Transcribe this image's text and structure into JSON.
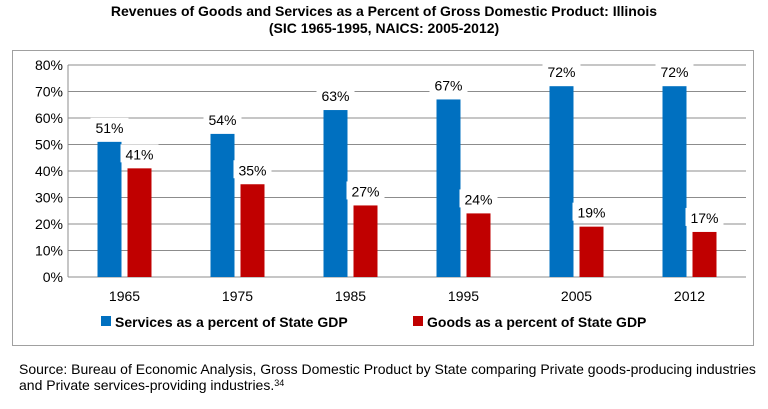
{
  "chart_data": {
    "type": "bar",
    "title_line1": "Revenues of Goods and Services as a Percent of Gross Domestic Product:  Illinois",
    "title_line2": "(SIC 1965-1995, NAICS: 2005-2012)",
    "categories": [
      "1965",
      "1975",
      "1985",
      "1995",
      "2005",
      "2012"
    ],
    "series": [
      {
        "name": "Services as a percent of State GDP",
        "color": "#0070c0",
        "values": [
          51,
          54,
          63,
          67,
          72,
          72
        ],
        "labels": [
          "51%",
          "54%",
          "63%",
          "67%",
          "72%",
          "72%"
        ]
      },
      {
        "name": "Goods as a percent of State GDP",
        "color": "#c00000",
        "values": [
          41,
          35,
          27,
          24,
          19,
          17
        ],
        "labels": [
          "41%",
          "35%",
          "27%",
          "24%",
          "19%",
          "17%"
        ]
      }
    ],
    "yticks": [
      0,
      10,
      20,
      30,
      40,
      50,
      60,
      70,
      80
    ],
    "ytick_labels": [
      "0%",
      "10%",
      "20%",
      "30%",
      "40%",
      "50%",
      "60%",
      "70%",
      "80%"
    ],
    "ylim": [
      0,
      80
    ],
    "grid": true,
    "legend_position": "bottom",
    "xlabel": "",
    "ylabel": ""
  },
  "source": {
    "text": "Source: Bureau of Economic Analysis, Gross Domestic Product by State comparing Private goods-producing industries and Private services-providing industries.",
    "footnote": "34"
  }
}
